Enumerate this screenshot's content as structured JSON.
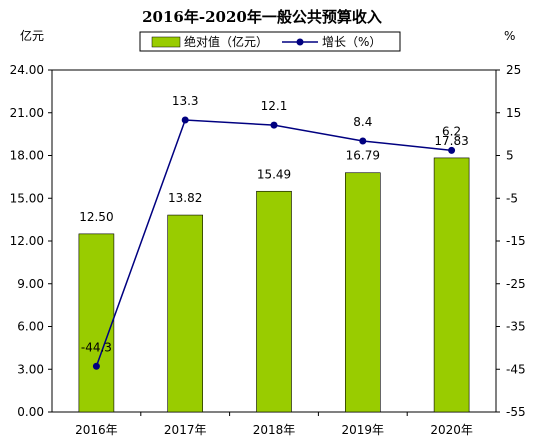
{
  "chart_data": {
    "type": "bar+line",
    "title": "2016年-2020年一般公共预算收入",
    "categories": [
      "2016年",
      "2017年",
      "2018年",
      "2019年",
      "2020年"
    ],
    "bar_series": {
      "name": "绝对值（亿元）",
      "values": [
        12.5,
        13.82,
        15.49,
        16.79,
        17.83
      ],
      "labels": [
        "12.50",
        "13.82",
        "15.49",
        "16.79",
        "17.83"
      ],
      "color": "#99cc00"
    },
    "line_series": {
      "name": "增长（%）",
      "values": [
        -44.3,
        13.3,
        12.1,
        8.4,
        6.2
      ],
      "labels": [
        "-44.3",
        "13.3",
        "12.1",
        "8.4",
        "6.2"
      ],
      "color": "#000080"
    },
    "y_left": {
      "unit": "亿元",
      "ylim": [
        0,
        24
      ],
      "ticks": [
        "0.00",
        "3.00",
        "6.00",
        "9.00",
        "12.00",
        "15.00",
        "18.00",
        "21.00",
        "24.00"
      ]
    },
    "y_right": {
      "unit": "%",
      "ylim": [
        -55,
        25
      ],
      "ticks": [
        "-55",
        "-45",
        "-35",
        "-25",
        "-15",
        "-5",
        "5",
        "15",
        "25"
      ]
    },
    "grid": false,
    "legend_position": "top"
  }
}
